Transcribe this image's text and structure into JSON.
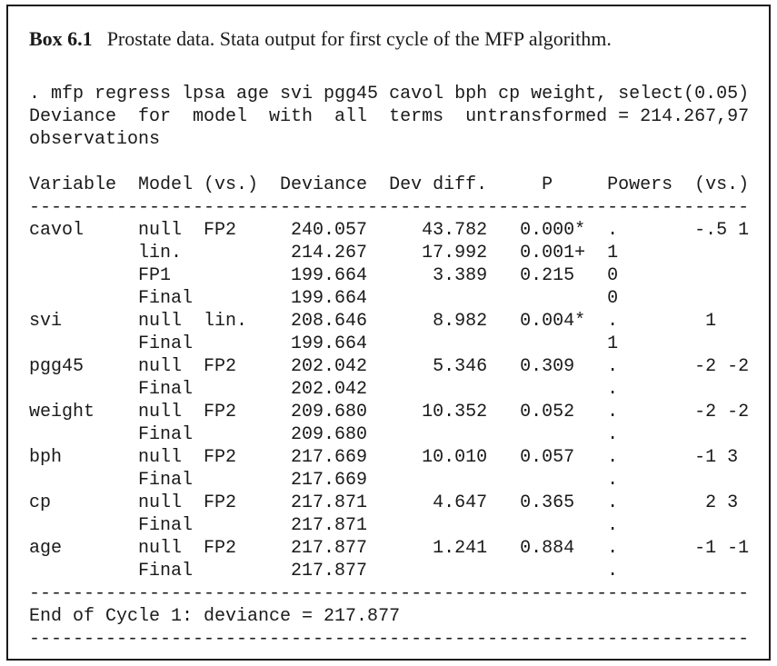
{
  "box": {
    "title": {
      "label": "Box 6.1",
      "text": "Prostate data. Stata output for first cycle of the MFP algorithm."
    }
  },
  "stata": {
    "command_lines": [
      ". mfp regress lpsa age svi pgg45 cavol bph cp weight, select(0.05)",
      "Deviance  for  model  with  all  terms  untransformed = 214.267,97",
      "observations"
    ],
    "table": {
      "columns": [
        {
          "key": "variable",
          "label": "Variable",
          "col": 0,
          "align": "left",
          "label_col": 0
        },
        {
          "key": "model",
          "label": "Model",
          "col": 10,
          "align": "left",
          "label_col": 10
        },
        {
          "key": "vs",
          "label": "(vs.)",
          "col": 16,
          "align": "left",
          "label_col": 16
        },
        {
          "key": "deviance",
          "label": "Deviance",
          "col": 30,
          "align": "right",
          "label_col": 23
        },
        {
          "key": "dev_diff",
          "label": "Dev diff.",
          "col": 41,
          "align": "right",
          "label_col": 33
        },
        {
          "key": "p",
          "label": "P",
          "col": 45,
          "align": "left",
          "label_col": 47
        },
        {
          "key": "powers",
          "label": "Powers",
          "col": 53,
          "align": "left",
          "label_col": 53
        },
        {
          "key": "vs_powers",
          "label": "(vs.)",
          "col": 61,
          "align": "left",
          "label_col": 61
        }
      ],
      "separator": {
        "char": "-",
        "count": 66
      },
      "rows": [
        {
          "variable": "cavol",
          "model": "null",
          "vs": "FP2",
          "deviance": "240.057",
          "dev_diff": "43.782",
          "p": "0.000*",
          "powers": ".",
          "vs_powers": "-.5 1"
        },
        {
          "variable": "",
          "model": "lin.",
          "vs": "",
          "deviance": "214.267",
          "dev_diff": "17.992",
          "p": "0.001+",
          "powers": "1",
          "vs_powers": ""
        },
        {
          "variable": "",
          "model": "FP1",
          "vs": "",
          "deviance": "199.664",
          "dev_diff": "3.389",
          "p": "0.215",
          "powers": "0",
          "vs_powers": ""
        },
        {
          "variable": "",
          "model": "Final",
          "vs": "",
          "deviance": "199.664",
          "dev_diff": "",
          "p": "",
          "powers": "0",
          "vs_powers": ""
        },
        {
          "variable": "svi",
          "model": "null",
          "vs": "lin.",
          "deviance": "208.646",
          "dev_diff": "8.982",
          "p": "0.004*",
          "powers": ".",
          "vs_powers": " 1"
        },
        {
          "variable": "",
          "model": "Final",
          "vs": "",
          "deviance": "199.664",
          "dev_diff": "",
          "p": "",
          "powers": "1",
          "vs_powers": ""
        },
        {
          "variable": "pgg45",
          "model": "null",
          "vs": "FP2",
          "deviance": "202.042",
          "dev_diff": "5.346",
          "p": "0.309",
          "powers": ".",
          "vs_powers": "-2 -2"
        },
        {
          "variable": "",
          "model": "Final",
          "vs": "",
          "deviance": "202.042",
          "dev_diff": "",
          "p": "",
          "powers": ".",
          "vs_powers": ""
        },
        {
          "variable": "weight",
          "model": "null",
          "vs": "FP2",
          "deviance": "209.680",
          "dev_diff": "10.352",
          "p": "0.052",
          "powers": ".",
          "vs_powers": "-2 -2"
        },
        {
          "variable": "",
          "model": "Final",
          "vs": "",
          "deviance": "209.680",
          "dev_diff": "",
          "p": "",
          "powers": ".",
          "vs_powers": ""
        },
        {
          "variable": "bph",
          "model": "null",
          "vs": "FP2",
          "deviance": "217.669",
          "dev_diff": "10.010",
          "p": "0.057",
          "powers": ".",
          "vs_powers": "-1 3"
        },
        {
          "variable": "",
          "model": "Final",
          "vs": "",
          "deviance": "217.669",
          "dev_diff": "",
          "p": "",
          "powers": ".",
          "vs_powers": ""
        },
        {
          "variable": "cp",
          "model": "null",
          "vs": "FP2",
          "deviance": "217.871",
          "dev_diff": "4.647",
          "p": "0.365",
          "powers": ".",
          "vs_powers": " 2 3"
        },
        {
          "variable": "",
          "model": "Final",
          "vs": "",
          "deviance": "217.871",
          "dev_diff": "",
          "p": "",
          "powers": ".",
          "vs_powers": ""
        },
        {
          "variable": "age",
          "model": "null",
          "vs": "FP2",
          "deviance": "217.877",
          "dev_diff": "1.241",
          "p": "0.884",
          "powers": ".",
          "vs_powers": "-1 -1"
        },
        {
          "variable": "",
          "model": "Final",
          "vs": "",
          "deviance": "217.877",
          "dev_diff": "",
          "p": "",
          "powers": ".",
          "vs_powers": ""
        }
      ]
    },
    "footer": {
      "text": "End of Cycle 1: deviance = 217.877"
    }
  },
  "colors": {
    "text": "#1a1a1a",
    "border": "#1a1a1a",
    "background": "#ffffff"
  }
}
